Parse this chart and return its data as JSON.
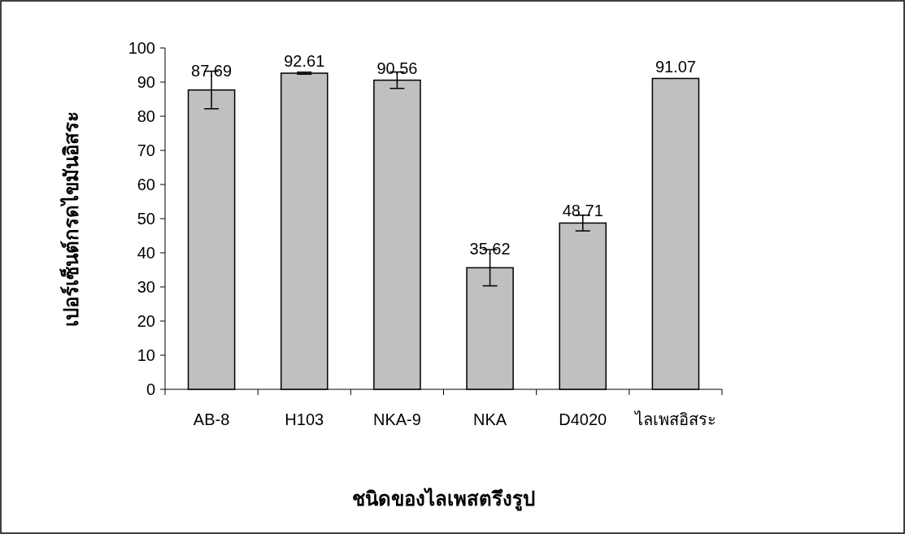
{
  "chart_data": {
    "type": "bar",
    "xlabel": "ชนิดของไลเพสตรึงรูป",
    "ylabel": "เปอร์เซ็นต์กรดไขมันอิสระ",
    "categories": [
      "AB-8",
      "H103",
      "NKA-9",
      "NKA",
      "D4020",
      "ไลเพสอิสระ"
    ],
    "values": [
      87.69,
      92.61,
      90.56,
      35.62,
      48.71,
      91.07
    ],
    "errors": [
      5.5,
      0.3,
      2.4,
      5.3,
      2.3,
      null
    ],
    "color": "#c0c0c0",
    "data_labels": true,
    "grid": false,
    "ylim": [
      0,
      100
    ],
    "yticks": [
      0,
      10,
      20,
      30,
      40,
      50,
      60,
      70,
      80,
      90,
      100
    ]
  }
}
